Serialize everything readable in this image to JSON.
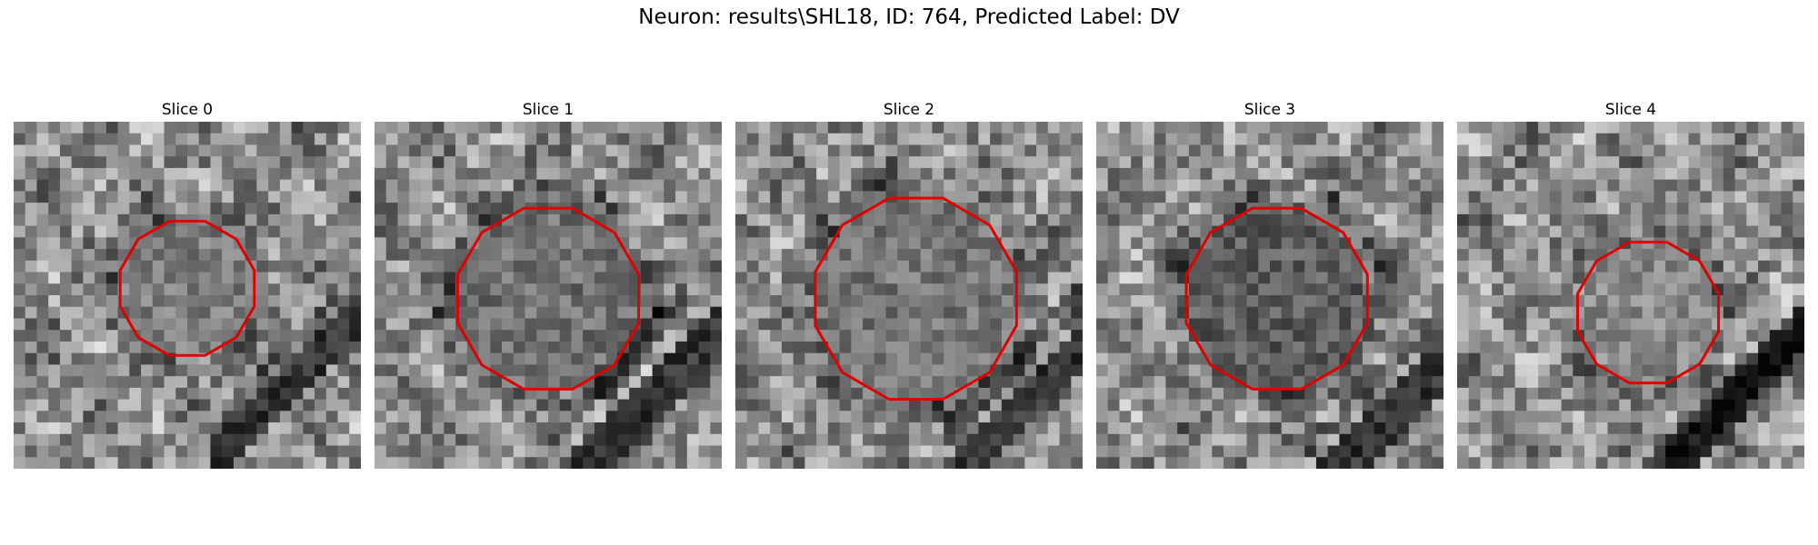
{
  "figure": {
    "title": "Neuron: results\\SHL18, ID: 764, Predicted Label: DV"
  },
  "colors": {
    "contour": "#e00000",
    "background": "#ffffff"
  },
  "panels": [
    {
      "title": "Slice 0"
    },
    {
      "title": "Slice 1"
    },
    {
      "title": "Slice 2"
    },
    {
      "title": "Slice 3"
    },
    {
      "title": "Slice 4"
    }
  ]
}
